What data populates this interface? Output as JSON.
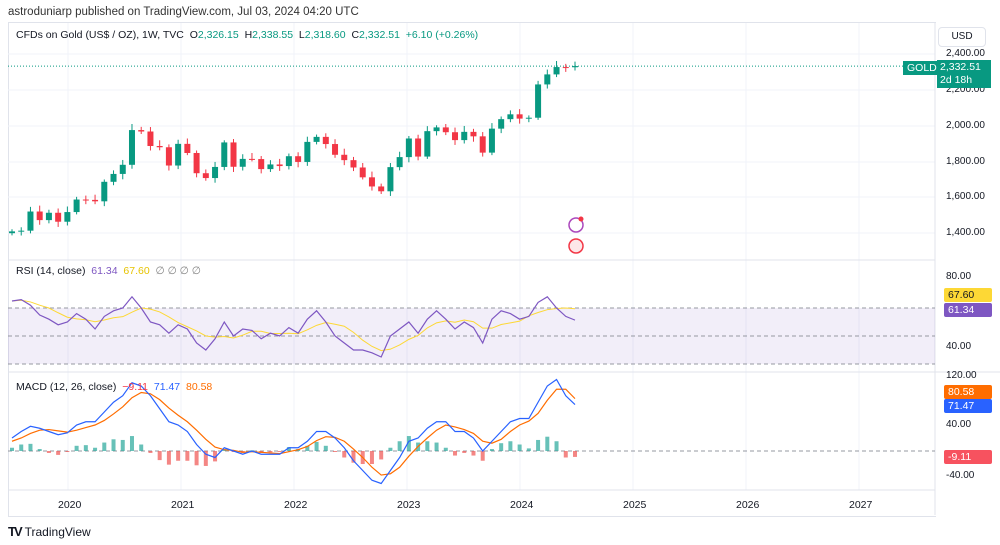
{
  "header": {
    "published": "astroduniarp published on TradingView.com, Jul 03, 2024 04:20 UTC"
  },
  "legend": {
    "symbol": "CFDs on Gold (US$ / OZ), 1W, TVC",
    "o_label": "O",
    "o": "2,326.15",
    "h_label": "H",
    "h": "2,338.55",
    "l_label": "L",
    "l": "2,318.60",
    "c_label": "C",
    "c": "2,332.51",
    "change": "+6.10 (+0.26%)"
  },
  "price_axis": {
    "currency": "USD",
    "ticks": [
      "2,400.00",
      "2,200.00",
      "2,000.00",
      "1,800.00",
      "1,600.00",
      "1,400.00"
    ],
    "symbol_tag": "GOLD",
    "last_price": "2,332.51",
    "countdown": "2d 18h"
  },
  "rsi": {
    "label": "RSI (14, close)",
    "value": "61.34",
    "ma": "67.60",
    "extra": "∅ ∅ ∅ ∅",
    "ticks": [
      "80.00",
      "40.00"
    ],
    "tag_ma": "67.60",
    "tag_value": "61.34"
  },
  "macd": {
    "label": "MACD (12, 26, close)",
    "hist": "−9.11",
    "macd": "71.47",
    "signal": "80.58",
    "ticks": [
      "120.00",
      "40.00",
      "0.00",
      "-40.00"
    ],
    "tag_signal": "80.58",
    "tag_macd": "71.47",
    "tag_hist": "-9.11"
  },
  "time_axis": [
    "2020",
    "2021",
    "2022",
    "2023",
    "2024",
    "2025",
    "2026",
    "2027"
  ],
  "footer": {
    "brand": "TradingView"
  },
  "colors": {
    "up": "#089981",
    "down": "#f23645",
    "rsi": "#7e57c2",
    "rsi_ma": "#fdd835",
    "macd": "#2962ff",
    "signal": "#ff6d00"
  },
  "chart_data": {
    "type": "candlestick",
    "x_start": "2019-06",
    "x_step": "1 month (approx.)",
    "ylim": [
      1350,
      2480
    ],
    "closes": [
      1409,
      1413,
      1520,
      1472,
      1513,
      1463,
      1517,
      1587,
      1585,
      1577,
      1686,
      1730,
      1781,
      1975,
      1967,
      1886,
      1879,
      1777,
      1898,
      1847,
      1734,
      1707,
      1769,
      1906,
      1770,
      1814,
      1813,
      1757,
      1783,
      1774,
      1829,
      1797,
      1909,
      1937,
      1897,
      1837,
      1807,
      1766,
      1711,
      1660,
      1633,
      1768,
      1824,
      1928,
      1827,
      1969,
      1990,
      1963,
      1919,
      1965,
      1940,
      1849,
      1983,
      2036,
      2063,
      2039,
      2044,
      2230,
      2286,
      2327,
      2326,
      2332.51
    ],
    "rsi": [
      75,
      76,
      72,
      65,
      62,
      58,
      60,
      66,
      62,
      55,
      64,
      68,
      70,
      78,
      70,
      60,
      58,
      52,
      58,
      55,
      45,
      40,
      48,
      60,
      50,
      55,
      54,
      48,
      52,
      50,
      56,
      52,
      62,
      68,
      60,
      50,
      45,
      40,
      40,
      38,
      35,
      50,
      55,
      60,
      52,
      62,
      68,
      62,
      55,
      60,
      56,
      45,
      62,
      68,
      66,
      62,
      64,
      74,
      78,
      70,
      64,
      61.34
    ],
    "rsi_ylim": [
      25,
      85
    ],
    "macd_line": [
      20,
      30,
      38,
      35,
      30,
      25,
      28,
      40,
      45,
      45,
      60,
      75,
      85,
      105,
      100,
      85,
      65,
      45,
      40,
      30,
      10,
      -5,
      -10,
      5,
      0,
      -5,
      0,
      -5,
      -5,
      -5,
      5,
      5,
      15,
      30,
      30,
      20,
      5,
      -15,
      -30,
      -45,
      -50,
      -30,
      -10,
      15,
      20,
      35,
      45,
      45,
      30,
      30,
      20,
      0,
      15,
      30,
      45,
      50,
      50,
      75,
      100,
      110,
      85,
      71.47
    ],
    "signal_line": [
      15,
      20,
      27,
      32,
      33,
      31,
      29,
      32,
      36,
      40,
      47,
      57,
      68,
      82,
      90,
      88,
      79,
      66,
      55,
      45,
      32,
      18,
      6,
      2,
      1,
      -2,
      -1,
      -2,
      -3,
      -4,
      -1,
      2,
      7,
      16,
      22,
      21,
      15,
      3,
      -10,
      -25,
      -37,
      -35,
      -25,
      -8,
      7,
      20,
      32,
      40,
      37,
      33,
      27,
      15,
      12,
      18,
      30,
      40,
      46,
      58,
      78,
      95,
      95,
      80.58
    ],
    "macd_ylim": [
      -50,
      125
    ]
  }
}
